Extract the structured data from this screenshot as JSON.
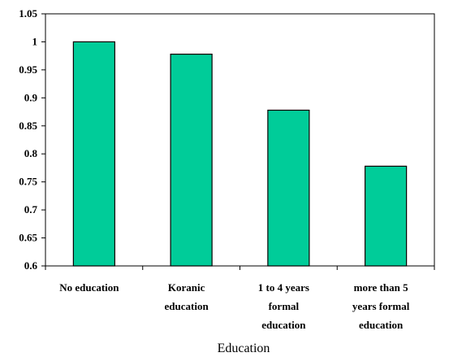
{
  "chart_data": {
    "type": "bar",
    "categories": [
      [
        "No education"
      ],
      [
        "Koranic",
        "education"
      ],
      [
        "1 to 4 years",
        "formal",
        "education"
      ],
      [
        "more than 5",
        "years formal",
        "education"
      ]
    ],
    "values": [
      1.0,
      0.978,
      0.878,
      0.778
    ],
    "yticks": [
      "0.6",
      "0.65",
      "0.7",
      "0.75",
      "0.8",
      "0.85",
      "0.9",
      "0.95",
      "1",
      "1.05"
    ],
    "ylim": [
      0.6,
      1.05
    ],
    "title": "",
    "xlabel": "Education",
    "ylabel": "",
    "grid": false,
    "legend": "none",
    "bar_color": "#00CC99"
  }
}
